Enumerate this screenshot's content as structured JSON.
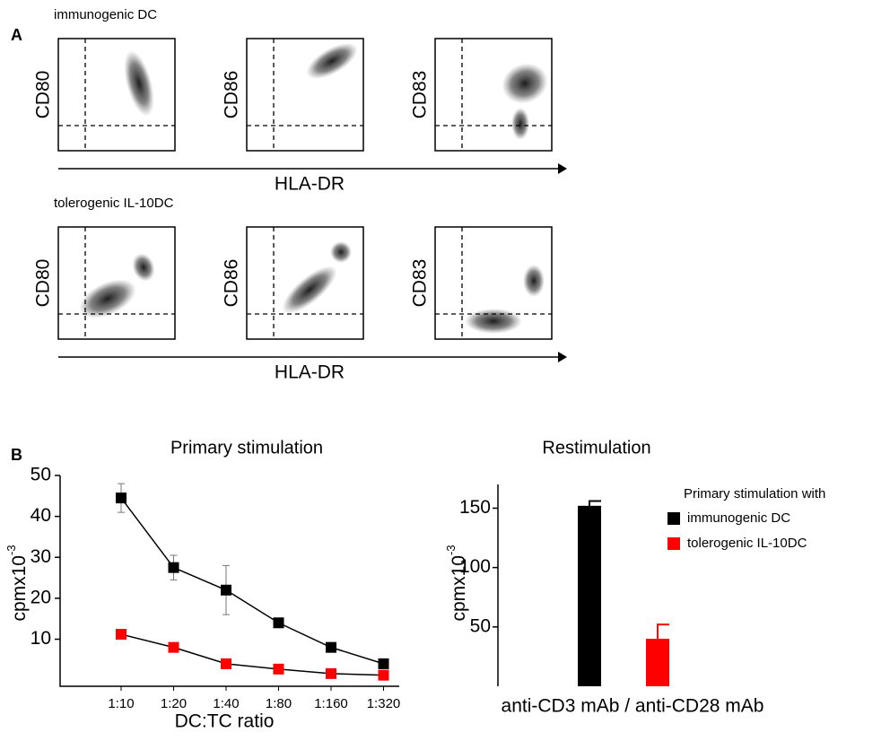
{
  "panel_a": {
    "label": "A",
    "x_label": "HLA-DR",
    "rows": [
      {
        "title": "immunogenic DC",
        "plots": [
          "CD80",
          "CD86",
          "CD83"
        ]
      },
      {
        "title": "tolerogenic IL-10DC",
        "plots": [
          "CD80",
          "CD86",
          "CD83"
        ]
      }
    ]
  },
  "panel_b_label": "B",
  "chart_data": [
    {
      "type": "line",
      "title": "Primary stimulation",
      "x_label": "DC:TC ratio",
      "y_label": {
        "base": "cpmx10",
        "sup": "-3"
      },
      "categories": [
        "1:10",
        "1:20",
        "1:40",
        "1:80",
        "1:160",
        "1:320"
      ],
      "ylim": [
        -1.5,
        50
      ],
      "yticks": [
        10,
        20,
        30,
        40,
        50
      ],
      "series": [
        {
          "name": "immunogenic DC",
          "color": "#000000",
          "values": [
            44.5,
            27.5,
            22,
            14,
            8,
            4
          ],
          "errors": [
            3.5,
            3,
            6,
            0.5,
            1,
            0.5
          ]
        },
        {
          "name": "tolerogenic IL-10DC",
          "color": "#ff0000",
          "values": [
            11.2,
            8,
            4,
            2.7,
            1.6,
            1.2
          ]
        }
      ]
    },
    {
      "type": "bar",
      "title": "Restimulation",
      "categories": [
        "anti-CD3 mAb / anti-CD28 mAb"
      ],
      "y_label": {
        "base": "cpmx10",
        "sup": "-3"
      },
      "ylim": [
        0,
        170
      ],
      "yticks": [
        50,
        100,
        150
      ],
      "legend_title": "Primary stimulation with",
      "series": [
        {
          "name": "immunogenic DC",
          "color": "#000000",
          "values": [
            152
          ],
          "errors": [
            4
          ]
        },
        {
          "name": "tolerogenic IL-10DC",
          "color": "#ff0000",
          "values": [
            40
          ],
          "errors": [
            12
          ]
        }
      ]
    }
  ]
}
